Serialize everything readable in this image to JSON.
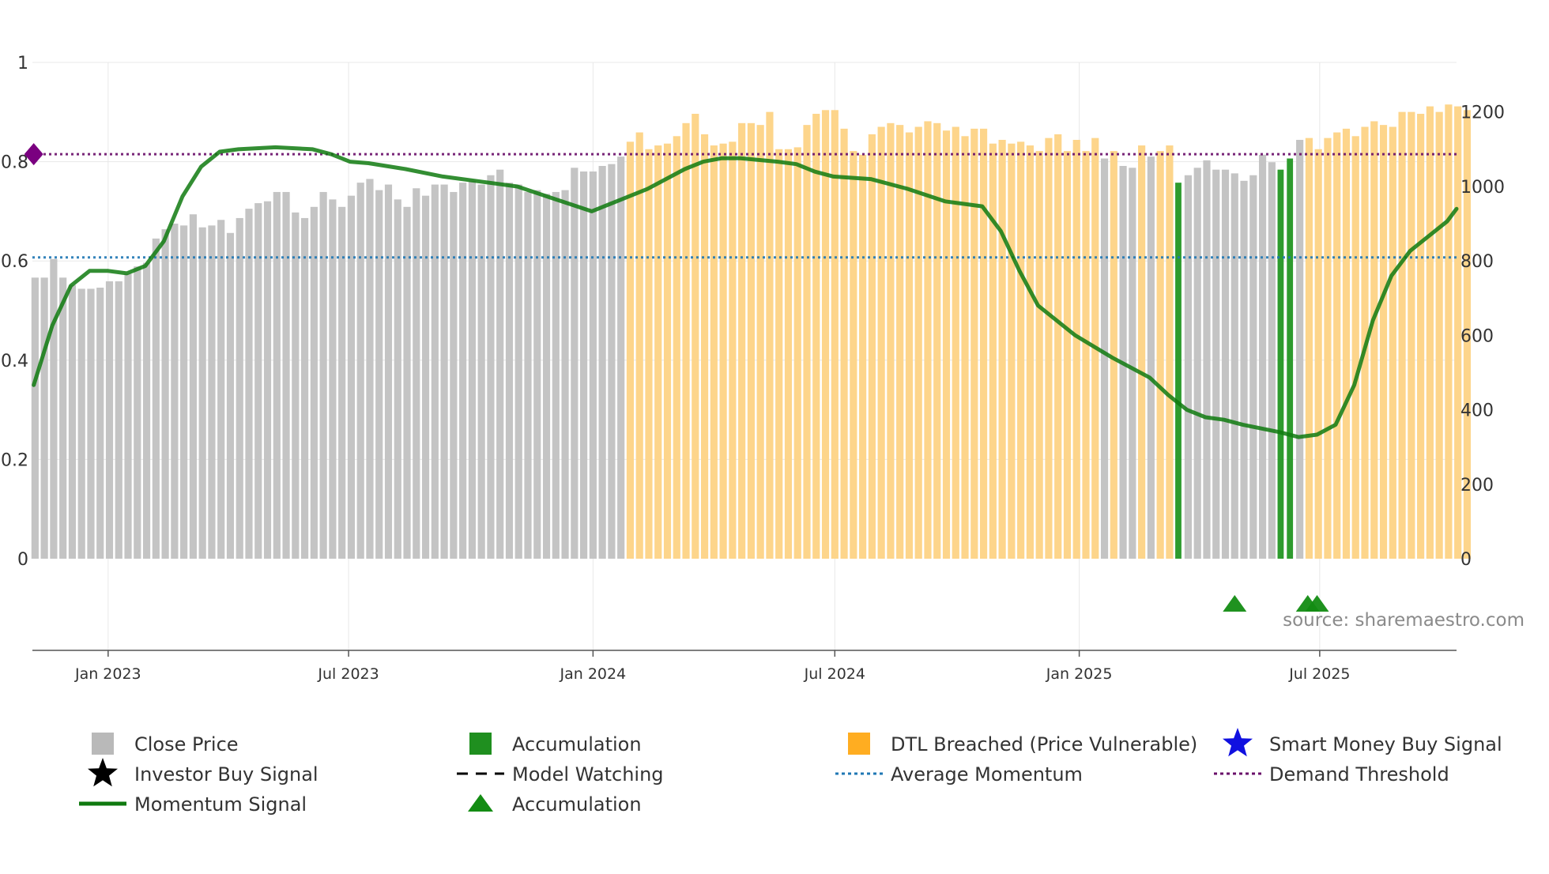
{
  "chart_data": {
    "type": "bar",
    "title": "",
    "source_label": "source: sharemaestro.com",
    "left_axis": {
      "range": [
        0,
        1
      ],
      "ticks": [
        0,
        0.2,
        0.4,
        0.6,
        0.8,
        1
      ],
      "tick_labels": [
        "0",
        "0.2",
        "0.4",
        "0.6",
        "0.8",
        "1"
      ]
    },
    "right_axis": {
      "range": [
        0,
        1333
      ],
      "ticks": [
        0,
        200,
        400,
        600,
        800,
        1000,
        1200
      ],
      "tick_labels": [
        "0",
        "200",
        "400",
        "600",
        "800",
        "1000",
        "1200"
      ]
    },
    "x_axis": {
      "start": "2022-11-05",
      "end": "2025-10-12",
      "tick_dates": [
        "2023-01-01",
        "2023-07-01",
        "2024-01-01",
        "2024-07-01",
        "2025-01-01",
        "2025-07-01"
      ],
      "tick_labels": [
        "Jan 2023",
        "Jul 2023",
        "Jan 2024",
        "Jul 2024",
        "Jan 2025",
        "Jul 2025"
      ]
    },
    "bars": {
      "start": "2022-11-07",
      "interval_days": 7,
      "close_price": [
        755,
        755,
        805,
        755,
        735,
        725,
        725,
        728,
        745,
        745,
        765,
        785,
        795,
        860,
        885,
        900,
        895,
        925,
        890,
        895,
        910,
        875,
        915,
        940,
        955,
        960,
        985,
        985,
        930,
        915,
        945,
        985,
        965,
        945,
        975,
        1010,
        1020,
        990,
        1005,
        965,
        945,
        995,
        975,
        1005,
        1005,
        985,
        1010,
        1015,
        1005,
        1030,
        1045,
        1010,
        1005,
        985,
        990,
        980,
        985,
        990,
        1050,
        1040,
        1040,
        1055,
        1060,
        1080,
        1120,
        1145,
        1100,
        1110,
        1115,
        1135,
        1170,
        1195,
        1140,
        1110,
        1115,
        1120,
        1170,
        1170,
        1165,
        1200,
        1100,
        1100,
        1105,
        1165,
        1195,
        1205,
        1205,
        1155,
        1095,
        1085,
        1140,
        1160,
        1170,
        1165,
        1145,
        1160,
        1175,
        1170,
        1150,
        1160,
        1135,
        1155,
        1155,
        1115,
        1125,
        1115,
        1120,
        1110,
        1095,
        1130,
        1140,
        1095,
        1125,
        1095,
        1130,
        1075,
        1095,
        1055,
        1050,
        1110,
        1080,
        1095,
        1110,
        1010,
        1030,
        1050,
        1070,
        1045,
        1045,
        1035,
        1015,
        1030,
        1085,
        1065,
        1045,
        1075,
        1125,
        1130,
        1100,
        1130,
        1145,
        1155,
        1135,
        1160,
        1175,
        1165,
        1160,
        1200,
        1200,
        1195,
        1215,
        1200,
        1220,
        1215,
        1205
      ],
      "status": [
        "close",
        "close",
        "close",
        "close",
        "close",
        "close",
        "close",
        "close",
        "close",
        "close",
        "close",
        "close",
        "close",
        "close",
        "close",
        "close",
        "close",
        "close",
        "close",
        "close",
        "close",
        "close",
        "close",
        "close",
        "close",
        "close",
        "close",
        "close",
        "close",
        "close",
        "close",
        "close",
        "close",
        "close",
        "close",
        "close",
        "close",
        "close",
        "close",
        "close",
        "close",
        "close",
        "close",
        "close",
        "close",
        "close",
        "close",
        "close",
        "close",
        "close",
        "close",
        "close",
        "close",
        "close",
        "close",
        "close",
        "close",
        "close",
        "close",
        "close",
        "close",
        "close",
        "close",
        "close",
        "dtl",
        "dtl",
        "dtl",
        "dtl",
        "dtl",
        "dtl",
        "dtl",
        "dtl",
        "dtl",
        "dtl",
        "dtl",
        "dtl",
        "dtl",
        "dtl",
        "dtl",
        "dtl",
        "dtl",
        "dtl",
        "dtl",
        "dtl",
        "dtl",
        "dtl",
        "dtl",
        "dtl",
        "dtl",
        "dtl",
        "dtl",
        "dtl",
        "dtl",
        "dtl",
        "dtl",
        "dtl",
        "dtl",
        "dtl",
        "dtl",
        "dtl",
        "dtl",
        "dtl",
        "dtl",
        "dtl",
        "dtl",
        "dtl",
        "dtl",
        "dtl",
        "dtl",
        "dtl",
        "dtl",
        "dtl",
        "dtl",
        "dtl",
        "dtl",
        "close",
        "dtl",
        "close",
        "close",
        "dtl",
        "close",
        "dtl",
        "dtl",
        "accumulation",
        "close",
        "close",
        "close",
        "close",
        "close",
        "close",
        "close",
        "close",
        "close",
        "close",
        "accumulation",
        "accumulation",
        "close",
        "dtl",
        "dtl",
        "dtl",
        "dtl",
        "dtl",
        "dtl",
        "dtl",
        "dtl",
        "dtl",
        "dtl",
        "dtl",
        "dtl",
        "dtl",
        "dtl",
        "dtl",
        "dtl",
        "dtl",
        "dtl"
      ]
    },
    "series": [
      {
        "name": "Momentum Signal",
        "axis": "left",
        "color": "#0f7a0f",
        "points": [
          [
            "2022-11-06",
            0.35
          ],
          [
            "2022-11-20",
            0.47
          ],
          [
            "2022-12-04",
            0.55
          ],
          [
            "2022-12-18",
            0.58
          ],
          [
            "2023-01-01",
            0.58
          ],
          [
            "2023-01-15",
            0.575
          ],
          [
            "2023-01-29",
            0.59
          ],
          [
            "2023-02-12",
            0.64
          ],
          [
            "2023-02-26",
            0.73
          ],
          [
            "2023-03-12",
            0.79
          ],
          [
            "2023-03-26",
            0.82
          ],
          [
            "2023-04-09",
            0.825
          ],
          [
            "2023-05-07",
            0.829
          ],
          [
            "2023-06-04",
            0.825
          ],
          [
            "2023-06-18",
            0.815
          ],
          [
            "2023-07-02",
            0.8
          ],
          [
            "2023-07-16",
            0.797
          ],
          [
            "2023-08-13",
            0.785
          ],
          [
            "2023-09-10",
            0.77
          ],
          [
            "2023-10-08",
            0.76
          ],
          [
            "2023-11-05",
            0.75
          ],
          [
            "2023-12-03",
            0.725
          ],
          [
            "2023-12-31",
            0.7
          ],
          [
            "2024-01-14",
            0.715
          ],
          [
            "2024-02-11",
            0.745
          ],
          [
            "2024-03-10",
            0.785
          ],
          [
            "2024-03-24",
            0.8
          ],
          [
            "2024-04-07",
            0.807
          ],
          [
            "2024-04-21",
            0.807
          ],
          [
            "2024-05-19",
            0.8
          ],
          [
            "2024-06-02",
            0.795
          ],
          [
            "2024-06-16",
            0.78
          ],
          [
            "2024-06-30",
            0.77
          ],
          [
            "2024-07-28",
            0.765
          ],
          [
            "2024-08-25",
            0.745
          ],
          [
            "2024-09-22",
            0.72
          ],
          [
            "2024-10-20",
            0.71
          ],
          [
            "2024-11-03",
            0.66
          ],
          [
            "2024-11-17",
            0.58
          ],
          [
            "2024-12-01",
            0.51
          ],
          [
            "2024-12-29",
            0.45
          ],
          [
            "2025-01-26",
            0.405
          ],
          [
            "2025-02-23",
            0.365
          ],
          [
            "2025-03-09",
            0.33
          ],
          [
            "2025-03-23",
            0.3
          ],
          [
            "2025-04-06",
            0.285
          ],
          [
            "2025-04-20",
            0.28
          ],
          [
            "2025-05-04",
            0.27
          ],
          [
            "2025-06-01",
            0.255
          ],
          [
            "2025-06-15",
            0.245
          ],
          [
            "2025-06-29",
            0.25
          ],
          [
            "2025-07-13",
            0.27
          ],
          [
            "2025-07-27",
            0.35
          ],
          [
            "2025-08-10",
            0.48
          ],
          [
            "2025-08-24",
            0.57
          ],
          [
            "2025-09-07",
            0.62
          ],
          [
            "2025-09-21",
            0.65
          ],
          [
            "2025-10-05",
            0.68
          ],
          [
            "2025-10-12",
            0.705
          ]
        ]
      }
    ],
    "reference_lines": [
      {
        "name": "Average Momentum",
        "axis": "left",
        "value": 0.607,
        "color": "#1f77b4",
        "style": "dotted"
      },
      {
        "name": "Demand Threshold",
        "axis": "left",
        "value": 0.815,
        "color": "#6a0f6a",
        "style": "dotted"
      }
    ],
    "threshold_marker": {
      "shape": "diamond",
      "date": "2022-11-06",
      "value": 0.815,
      "color": "#7a0080"
    },
    "accumulation_triangles": [
      "2025-04-28",
      "2025-06-22",
      "2025-06-29"
    ],
    "colors": {
      "close": "#c4c4c4",
      "dtl": "#fdd58b",
      "accumulation": "#2e9b2e",
      "momentum": "#0f7a0f",
      "triangle": "#138c13",
      "grid": "#e8e8e8",
      "axis": "#555555"
    },
    "legend": [
      {
        "icon": "gray-square",
        "label": "Close Price"
      },
      {
        "icon": "green-square",
        "label": "Accumulation"
      },
      {
        "icon": "orange-square",
        "label": "DTL Breached (Price Vulnerable)"
      },
      {
        "icon": "blue-star",
        "label": "Smart Money Buy Signal"
      },
      {
        "icon": "black-star",
        "label": "Investor Buy Signal"
      },
      {
        "icon": "dashed-black-line",
        "label": "Model Watching"
      },
      {
        "icon": "dotted-blue-line",
        "label": "Average Momentum"
      },
      {
        "icon": "dotted-purple-line",
        "label": "Demand Threshold"
      },
      {
        "icon": "green-line",
        "label": "Momentum Signal"
      },
      {
        "icon": "green-triangle",
        "label": "Accumulation"
      }
    ]
  }
}
